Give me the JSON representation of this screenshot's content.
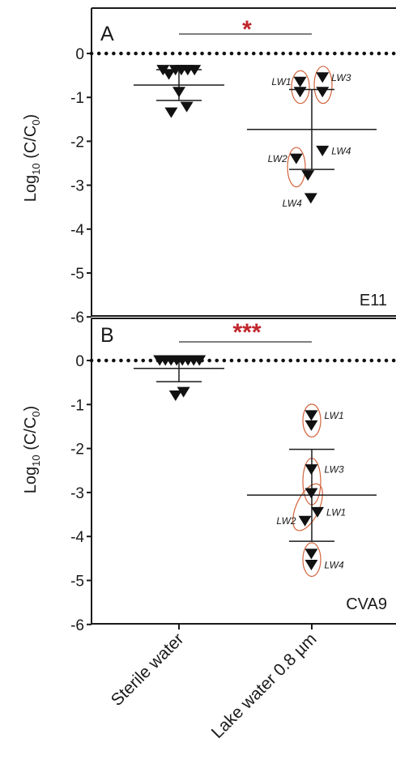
{
  "ylabel": {
    "base": "Log",
    "sub": "10",
    "rest": " (C/C",
    "sub2": "0",
    "end": ")"
  },
  "categories": [
    "Sterile water",
    "Lake water 0.8 µm"
  ],
  "panels": [
    {
      "letter": "A",
      "virus": "E11",
      "significance": "*"
    },
    {
      "letter": "B",
      "virus": "CVA9",
      "significance": "***"
    }
  ],
  "colors": {
    "significance": "#c0272d",
    "outline": "#d2623a",
    "marker": "#111111"
  },
  "chart_data": [
    {
      "type": "scatter",
      "panel": "A",
      "virus": "E11",
      "ylabel": "Log10 (C/C0)",
      "ylim": [
        -6,
        0.9
      ],
      "yticks": [
        0,
        -1,
        -2,
        -3,
        -4,
        -5,
        -6
      ],
      "categories": [
        "Sterile water",
        "Lake water 0.8 µm"
      ],
      "reference_line": 0,
      "significance": "*",
      "series": [
        {
          "category": "Sterile water",
          "points": [
            {
              "x": -0.82,
              "y": -0.38
            },
            {
              "x": -0.52,
              "y": -0.48
            },
            {
              "x": -0.18,
              "y": -0.38
            },
            {
              "x": 0.12,
              "y": -0.38
            },
            {
              "x": 0.45,
              "y": -0.38
            },
            {
              "x": 0.8,
              "y": -0.38
            },
            {
              "x": 0.0,
              "y": -0.88
            },
            {
              "x": 0.4,
              "y": -1.22
            },
            {
              "x": -0.4,
              "y": -1.35
            }
          ],
          "mean": -0.72,
          "sd_upper": -0.37,
          "sd_lower": -1.07
        },
        {
          "category": "Lake water 0.8 µm",
          "points": [
            {
              "x": -0.6,
              "y": -0.65,
              "label": "LW1"
            },
            {
              "x": -0.6,
              "y": -0.88
            },
            {
              "x": 0.55,
              "y": -0.55,
              "label": "LW3"
            },
            {
              "x": 0.55,
              "y": -0.88
            },
            {
              "x": -0.8,
              "y": -2.4,
              "label": "LW2"
            },
            {
              "x": -0.2,
              "y": -2.78
            },
            {
              "x": 0.55,
              "y": -2.22,
              "label": "LW4"
            },
            {
              "x": -0.05,
              "y": -3.3,
              "label": "LW4"
            }
          ],
          "mean": -1.73,
          "sd_upper": -0.82,
          "sd_lower": -2.64
        }
      ],
      "groups_outlined": [
        {
          "label": "LW1",
          "points": [
            -0.65,
            -0.88
          ]
        },
        {
          "label": "LW3",
          "points": [
            -0.55,
            -0.88
          ]
        },
        {
          "label": "LW2",
          "points": [
            -2.4,
            -2.78
          ]
        }
      ]
    },
    {
      "type": "scatter",
      "panel": "B",
      "virus": "CVA9",
      "ylabel": "Log10 (C/C0)",
      "ylim": [
        -6,
        0.6
      ],
      "yticks": [
        0,
        -1,
        -2,
        -3,
        -4,
        -5,
        -6
      ],
      "categories": [
        "Sterile water",
        "Lake water 0.8 µm"
      ],
      "reference_line": 0,
      "significance": "***",
      "series": [
        {
          "category": "Sterile water",
          "points": [
            {
              "x": -0.85,
              "y": 0.0
            },
            {
              "x": -0.6,
              "y": 0.0
            },
            {
              "x": -0.35,
              "y": 0.0
            },
            {
              "x": -0.1,
              "y": 0.0
            },
            {
              "x": 0.15,
              "y": 0.0
            },
            {
              "x": 0.4,
              "y": 0.0
            },
            {
              "x": 0.65,
              "y": 0.0
            },
            {
              "x": 0.9,
              "y": 0.0
            },
            {
              "x": 0.2,
              "y": -0.72
            },
            {
              "x": -0.15,
              "y": -0.8
            }
          ],
          "mean": -0.18,
          "sd_upper": 0.1,
          "sd_lower": -0.48
        },
        {
          "category": "Lake water 0.8 µm",
          "points": [
            {
              "x": -0.02,
              "y": -1.25,
              "label": "LW1"
            },
            {
              "x": -0.02,
              "y": -1.48
            },
            {
              "x": -0.02,
              "y": -2.48,
              "label": "LW3"
            },
            {
              "x": -0.02,
              "y": -3.02
            },
            {
              "x": -0.3,
              "y": -3.65,
              "label": "LW2"
            },
            {
              "x": 0.25,
              "y": -3.45,
              "label": "LW1"
            },
            {
              "x": -0.02,
              "y": -4.4
            },
            {
              "x": -0.02,
              "y": -4.65,
              "label": "LW4"
            }
          ],
          "mean": -3.06,
          "sd_upper": -2.02,
          "sd_lower": -4.11
        }
      ],
      "groups_outlined": [
        {
          "label": "LW1",
          "points": [
            -1.25,
            -1.48
          ]
        },
        {
          "label": "LW3",
          "points": [
            -2.48,
            -3.02
          ]
        },
        {
          "label": "LW2",
          "points": [
            -3.02,
            -3.65
          ]
        },
        {
          "label": "LW4",
          "points": [
            -4.4,
            -4.65
          ]
        }
      ]
    }
  ]
}
